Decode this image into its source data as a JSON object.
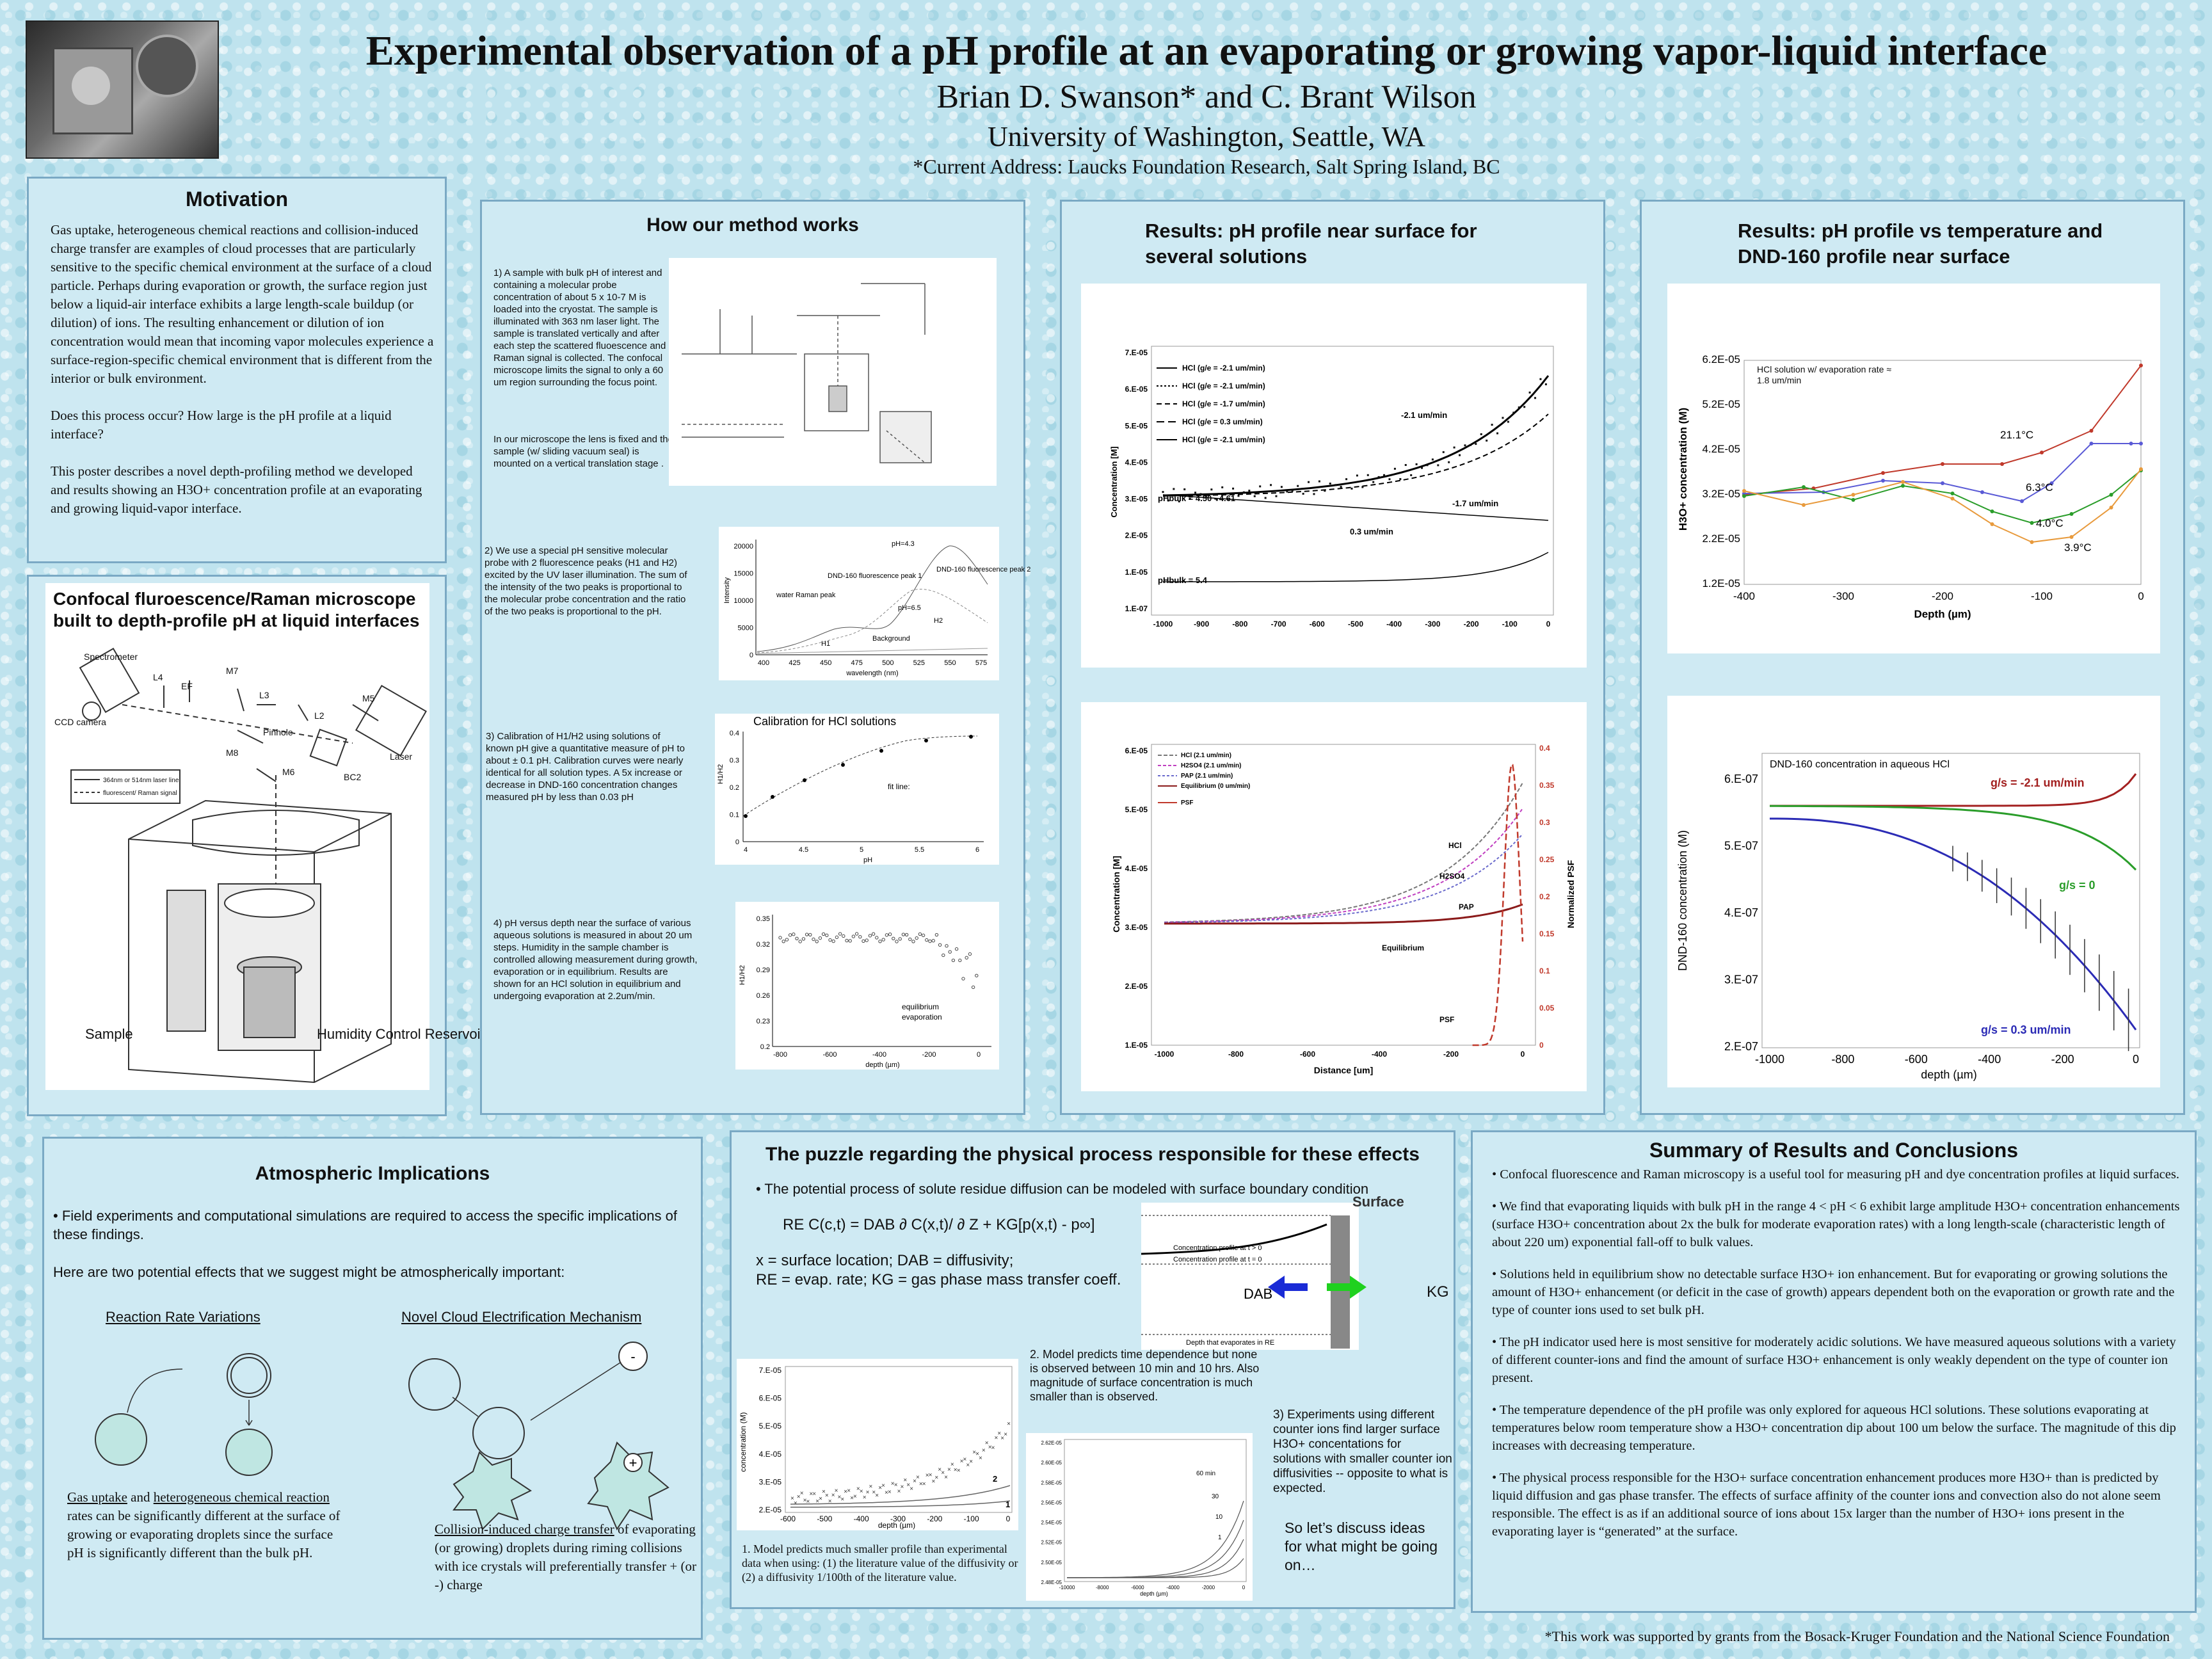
{
  "header": {
    "title": "Experimental observation of a pH profile at an evaporating or growing vapor-liquid interface",
    "authors": "Brian D. Swanson* and C. Brant Wilson",
    "affiliation": "University of Washington, Seattle, WA",
    "address": "*Current Address: Laucks Foundation Research, Salt Spring Island, BC"
  },
  "motivation": {
    "title": "Motivation",
    "p1": "Gas uptake, heterogeneous chemical reactions and collision-induced charge transfer are examples of cloud processes that are particularly sensitive to the specific chemical environment at the surface of a cloud particle. Perhaps during evaporation or growth, the surface region just below a liquid-air interface exhibits a large length-scale buildup (or dilution) of ions. The resulting enhancement or dilution of ion concentration would mean that incoming vapor molecules experience a surface-region-specific chemical environment that is different from the interior or bulk environment.",
    "p2": "Does this process occur? How large is the pH profile at a liquid interface?",
    "p3": "This poster describes a novel depth-profiling method we developed and results showing an H3O+ concentration profile at an evaporating and growing liquid-vapor interface."
  },
  "confocal": {
    "title": "Confocal fluroescence/Raman microscope built to depth-profile pH at liquid interfaces",
    "labels": {
      "spectrometer": "Spectrometer",
      "ccd": "CCD camera",
      "l4": "L4",
      "ef": "EF",
      "m7": "M7",
      "l3": "L3",
      "pinhole": "Pinhole",
      "l2": "L2",
      "m5": "M5",
      "m8": "M8",
      "m6": "M6",
      "bc2": "BC2",
      "laser": "Laser",
      "leg1": "364nm or 514nm laser line",
      "leg2": "fluorescent/ Raman signal",
      "sample": "Sample",
      "humidity": "Humidity Control Reservoir"
    }
  },
  "method": {
    "title": "How our method works",
    "step1a": "1)    A sample with bulk pH of interest and containing a molecular probe concentration of about 5 x 10-7 M is loaded into the cryostat. The sample is illuminated with 363 nm laser light. The sample is translated vertically and after each step the scattered fluoescence and Raman signal is collected. The confocal microscope limits the signal to only a 60 um region surrounding the focus point.",
    "step1b": "In our microscope the lens is fixed and the sample (w/ sliding vacuum seal) is mounted on a vertical translation stage .",
    "step2": "2) We use a special pH sensitive molecular probe with 2 fluorescence peaks (H1 and H2) excited by the UV laser illumination. The sum of the intensity of the two peaks is proportional to the molecular probe concentration and the ratio of the two peaks is proportional to the pH.",
    "step3": "3) Calibration of H1/H2 using solutions of known pH give a quantitative measure of pH to about ± 0.1 pH. Calibration curves were nearly identical for all solution types. A 5x increase or decrease in DND-160 concentration changes measured pH by less than 0.03 pH",
    "step4": "4) pH versus depth near the surface of various aqueous solutions is measured in about 20 um steps. Humidity in the sample chamber is controlled allowing measurement during growth, evaporation or in equilibrium. Results are shown for an HCl solution in equilibrium and undergoing evaporation at 2.2um/min.",
    "spectrum": {
      "ylabel": "Intensity",
      "xlabel": "wavelength (nm)",
      "xticks": [
        "400",
        "425",
        "450",
        "475",
        "500",
        "525",
        "550",
        "575"
      ],
      "yticks": [
        "0",
        "5000",
        "10000",
        "15000",
        "20000"
      ],
      "labels": [
        "pH=4.3",
        "pH=6.5",
        "water Raman peak",
        "DND-160 fluorescence peak 1",
        "DND-160 fluorescence peak 2",
        "Background",
        "H1",
        "H2"
      ]
    },
    "calib": {
      "title": "Calibration for HCl solutions",
      "ylabel": "H1/H2",
      "xlabel": "pH",
      "xticks": [
        "4",
        "4.5",
        "5",
        "5.5",
        "6"
      ],
      "yticks": [
        "0",
        "0.1",
        "0.2",
        "0.3",
        "0.4"
      ],
      "fit": "fit line:"
    },
    "depth": {
      "ylabel": "H1/H2",
      "xlabel": "depth (µm)",
      "xticks": [
        "-800",
        "-600",
        "-400",
        "-200",
        "0"
      ],
      "yticks": [
        "0.2",
        "0.23",
        "0.26",
        "0.29",
        "0.32",
        "0.35"
      ],
      "legend": [
        "equilibrium",
        "evaporation"
      ]
    }
  },
  "results1": {
    "title": "Results: pH profile near surface for several solutions",
    "chart1": {
      "ylabel": "Concentration [M]",
      "yticks": [
        "1.E-07",
        "1.E-05",
        "2.E-05",
        "3.E-05",
        "4.E-05",
        "5.E-05",
        "6.E-05",
        "7.E-05"
      ],
      "xticks": [
        "-1000",
        "-900",
        "-800",
        "-700",
        "-600",
        "-500",
        "-400",
        "-300",
        "-200",
        "-100",
        "0"
      ],
      "legend": [
        "HCl (g/e = -2.1 um/min)",
        "HCl (g/e = -2.1 um/min)",
        "HCl (g/e = -1.7 um/min)",
        "HCl (g/e = 0.3 um/min)",
        "HCl (g/e = -2.1 um/min)"
      ],
      "ann": [
        "-2.1 um/min",
        "-1.7 um/min",
        "0.3 um/min",
        "pHbulk = 4.50 - 4.61",
        "pHbulk = 5.4"
      ]
    },
    "chart2": {
      "ylabel": "Concentration [M]",
      "y2label": "Normalized PSF",
      "xlabel": "Distance [um]",
      "yticks": [
        "1.E-05",
        "2.E-05",
        "3.E-05",
        "4.E-05",
        "5.E-05",
        "6.E-05"
      ],
      "y2ticks": [
        "0",
        "0.05",
        "0.1",
        "0.15",
        "0.2",
        "0.25",
        "0.3",
        "0.35",
        "0.4"
      ],
      "xticks": [
        "-1000",
        "-800",
        "-600",
        "-400",
        "-200",
        "0"
      ],
      "legend": [
        "HCl (2.1 um/min)",
        "H2SO4 (2.1 um/min)",
        "PAP (2.1 um/min)",
        "Equilibrium (0 um/min)",
        "PSF"
      ],
      "ann": [
        "HCl",
        "H2SO4",
        "PAP",
        "Equilibrium",
        "PSF"
      ]
    }
  },
  "results2": {
    "title": "Results: pH profile vs temperature and DND-160 profile near surface",
    "chart1": {
      "note": "HCl solution w/ evaporation rate ≈ 1.8 um/min",
      "ylabel": "H3O+ concentration (M)",
      "xlabel": "Depth (µm)",
      "yticks": [
        "1.2E-05",
        "2.2E-05",
        "3.2E-05",
        "4.2E-05",
        "5.2E-05",
        "6.2E-05"
      ],
      "xticks": [
        "-400",
        "-300",
        "-200",
        "-100",
        "0"
      ],
      "ann": [
        "21.1°C",
        "6.3°C",
        "4.0°C",
        "3.9°C"
      ]
    },
    "chart2": {
      "note": "DND-160 concentration in aqueous HCl",
      "ylabel": "DND-160 concentration (M)",
      "xlabel": "depth (µm)",
      "yticks": [
        "2.E-07",
        "3.E-07",
        "4.E-07",
        "5.E-07",
        "6.E-07"
      ],
      "xticks": [
        "-1000",
        "-800",
        "-600",
        "-400",
        "-200",
        "0"
      ],
      "ann": [
        "g/s = -2.1 um/min",
        "g/s = 0",
        "g/s = 0.3 um/min"
      ]
    }
  },
  "atmos": {
    "title": "Atmospheric Implications",
    "p1": "• Field experiments and computational simulations are required to access the specific implications of these findings.",
    "p2": "Here are two potential effects that we suggest might be atmospherically important:",
    "h1": "Reaction Rate Variations",
    "h2": "Novel Cloud Electrification Mechanism",
    "c1a": "Gas uptake",
    "c1b": " and ",
    "c1c": "heterogeneous chemical reaction",
    "c1d": " rates can be significantly different at the surface of growing or evaporating droplets since the surface pH is significantly different than the bulk pH.",
    "c2a": "Collision-induced charge transfer",
    "c2b": " of evaporating (or growing) droplets during riming collisions with ice crystals will preferentially transfer + (or -) charge",
    "minus": "-",
    "plus": "+"
  },
  "puzzle": {
    "title": "The puzzle regarding the physical process responsible for these effects",
    "intro": "• The potential process of solute residue diffusion can be modeled with surface boundary condition",
    "eq": "RE C(c,t) = DAB ∂ C(x,t)/ ∂  Z + KG[p(x,t) - p∞]",
    "def1": "x = surface location; DAB = diffusivity;",
    "def2": "RE = evap. rate; KG = gas phase mass transfer coeff.",
    "diag": {
      "surface": "Surface",
      "l1": "Concentration profile at t > 0",
      "l2": "Concentration profile at t = 0",
      "l3": "Depth that evaporates in RE",
      "dab": "DAB",
      "kg": "KG"
    },
    "n1": "1. Model predicts much smaller profile than experimental data when using: (1) the literature value of the diffusivity or (2) a diffusivity 1/100th of the literature value.",
    "n2": "2. Model predicts time dependence but none is observed between 10 min and 10 hrs.  Also magnitude of surface concentration is much smaller than is observed.",
    "n3": "3) Experiments using different counter ions find larger surface H3O+ concentations for solutions with smaller counter ion diffusivities -- opposite to what is expected.",
    "n4": "So let’s discuss ideas for what might be going on…",
    "chartA": {
      "ylabel": "concentration (M)",
      "xlabel": "depth (µm)",
      "yticks": [
        "2.E-05",
        "3.E-05",
        "4.E-05",
        "5.E-05",
        "6.E-05",
        "7.E-05"
      ],
      "xticks": [
        "-600",
        "-500",
        "-400",
        "-300",
        "-200",
        "-100",
        "0"
      ],
      "ann": [
        "1",
        "2"
      ]
    },
    "chartB": {
      "xlabel": "depth (µm)",
      "yticks": [
        "2.48E-05",
        "2.50E-05",
        "2.52E-05",
        "2.54E-05",
        "2.56E-05",
        "2.58E-05",
        "2.60E-05",
        "2.62E-05"
      ],
      "xticks": [
        "-10000",
        "-8000",
        "-6000",
        "-4000",
        "-2000",
        "0"
      ],
      "ann": [
        "60 min",
        "30",
        "10",
        "1"
      ]
    }
  },
  "summary": {
    "title": "Summary of Results and Conclusions",
    "b1": "• Confocal fluorescence and Raman microscopy is a useful tool for measuring pH and dye concentration profiles at liquid surfaces.",
    "b2": "• We find that evaporating liquids with bulk pH in the range 4 < pH < 6 exhibit large amplitude H3O+ concentration enhancements (surface H3O+ concentration about 2x the bulk for moderate evaporation rates) with a long length-scale (characteristic length of about 220 um) exponential fall-off to bulk values.",
    "b3": "• Solutions held in equilibrium show no detectable surface H3O+ ion enhancement. But for evaporating or growing solutions the amount of H3O+ enhancement (or deficit in the case of growth) appears dependent both on the evaporation or growth rate and the type of counter ions used to set bulk pH.",
    "b4": "• The pH indicator used here is most sensitive for moderately acidic solutions.  We have measured aqueous solutions with a variety of different counter-ions and find the amount of surface H3O+ enhancement is only weakly dependent on the type of counter ion present.",
    "b5": "• The temperature dependence of the pH profile was only explored for aqueous HCl solutions.  These solutions evaporating at temperatures below room temperature show a H3O+ concentration dip about 100 um below the surface.  The magnitude of this dip increases with decreasing temperature.",
    "b6": "• The physical process responsible for the H3O+ surface concentration enhancement produces more H3O+ than is predicted by liquid diffusion and gas phase transfer.  The effects of surface affinity of the counter ions and convection also do not alone seem responsible.  The effect is as if an additional source of ions about 15x larger than the number of H3O+ ions present in the evaporating layer is “generated” at the surface."
  },
  "footer": "*This work was supported by grants from the Bosack-Kruger Foundation and the National Science Foundation",
  "colors": {
    "bg": "#bfe3ee",
    "panel": "#cfeaf3",
    "border": "#7aa9c4",
    "red": "#c0392b",
    "green": "#2a9d2a",
    "blue": "#2b2bb5",
    "orange": "#e89a3c"
  }
}
